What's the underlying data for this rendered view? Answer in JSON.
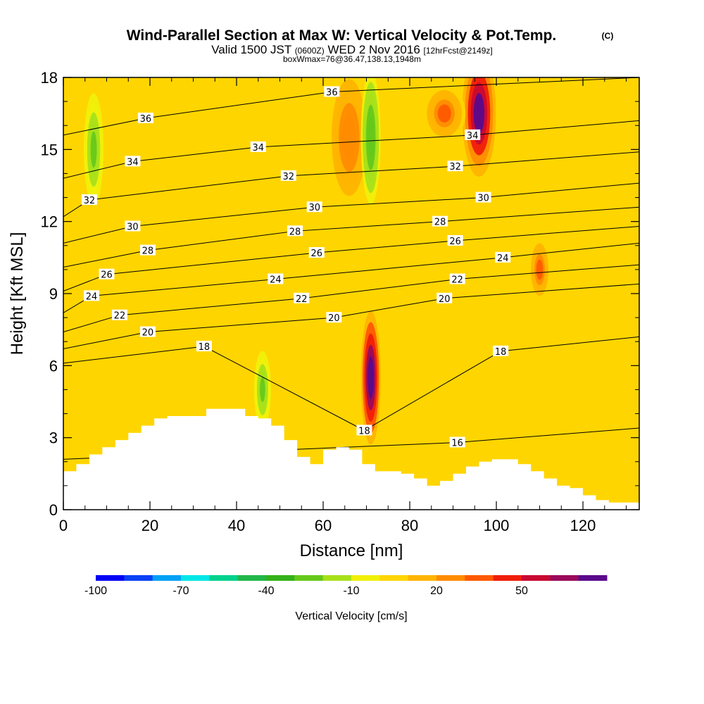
{
  "header": {
    "title": "Wind-Parallel Section at Max W: Vertical Velocity & Pot.Temp.",
    "title_mark": "(C)",
    "subtitle_main": "Valid 1500 JST",
    "subtitle_z": "(0600Z)",
    "subtitle_date": "WED 2 Nov 2016",
    "subtitle_fcst": "[12hrFcst@2149z]",
    "subtitle2": "boxWmax=76@36.47,138.13,1948m"
  },
  "chart_data": {
    "type": "heatmap",
    "xlabel": "Distance [nm]",
    "ylabel": "Height [Kft MSL]",
    "xlim": [
      0,
      133
    ],
    "ylim": [
      0,
      18
    ],
    "x_ticks": [
      0,
      20,
      40,
      60,
      80,
      100,
      120
    ],
    "y_ticks": [
      0,
      3,
      6,
      9,
      12,
      15,
      18
    ],
    "terrain": {
      "x": [
        0,
        3,
        6,
        9,
        12,
        15,
        18,
        21,
        24,
        27,
        30,
        33,
        36,
        39,
        42,
        45,
        48,
        51,
        54,
        57,
        60,
        63,
        66,
        69,
        72,
        75,
        78,
        81,
        84,
        87,
        90,
        93,
        96,
        99,
        102,
        105,
        108,
        111,
        114,
        117,
        120,
        123,
        126,
        129,
        133
      ],
      "height_kft": [
        1.6,
        1.9,
        2.3,
        2.6,
        2.9,
        3.2,
        3.5,
        3.8,
        3.9,
        3.9,
        3.9,
        4.2,
        4.2,
        4.2,
        3.9,
        3.8,
        3.5,
        2.9,
        2.2,
        1.9,
        2.5,
        2.6,
        2.5,
        1.9,
        1.6,
        1.6,
        1.5,
        1.3,
        1.0,
        1.2,
        1.5,
        1.8,
        2.0,
        2.1,
        2.1,
        1.9,
        1.6,
        1.3,
        1.0,
        0.9,
        0.6,
        0.4,
        0.3,
        0.3,
        0.3
      ]
    },
    "vertical_velocity_features": [
      {
        "kind": "updraft",
        "x": 71,
        "y": 5.5,
        "peak_cms": 76
      },
      {
        "kind": "updraft",
        "x": 96,
        "y": 16.5,
        "peak_cms": 70
      },
      {
        "kind": "updraft",
        "x": 88,
        "y": 16.5,
        "peak_cms": 30
      },
      {
        "kind": "updraft",
        "x": 66,
        "y": 15.5,
        "peak_cms": 25
      },
      {
        "kind": "updraft",
        "x": 110,
        "y": 10.0,
        "peak_cms": 30
      },
      {
        "kind": "downdraft",
        "x": 7,
        "y": 15.0,
        "peak_cms": -25
      },
      {
        "kind": "downdraft",
        "x": 71,
        "y": 15.5,
        "peak_cms": -30
      },
      {
        "kind": "downdraft",
        "x": 46,
        "y": 5.0,
        "peak_cms": -25
      }
    ],
    "theta_contours": [
      16,
      18,
      20,
      22,
      24,
      26,
      28,
      30,
      32,
      34,
      36
    ],
    "contour_labels": [
      {
        "text": "36",
        "x": 19,
        "y": 16.3
      },
      {
        "text": "34",
        "x": 16,
        "y": 14.5
      },
      {
        "text": "32",
        "x": 6,
        "y": 12.9
      },
      {
        "text": "30",
        "x": 16,
        "y": 11.8
      },
      {
        "text": "28",
        "x": 19.5,
        "y": 10.8
      },
      {
        "text": "26",
        "x": 10,
        "y": 9.8
      },
      {
        "text": "24",
        "x": 6.5,
        "y": 8.9
      },
      {
        "text": "22",
        "x": 13,
        "y": 8.1
      },
      {
        "text": "20",
        "x": 19.5,
        "y": 7.4
      },
      {
        "text": "18",
        "x": 32.5,
        "y": 6.8
      },
      {
        "text": "36",
        "x": 62,
        "y": 17.4
      },
      {
        "text": "34",
        "x": 45,
        "y": 15.1
      },
      {
        "text": "32",
        "x": 52,
        "y": 13.9
      },
      {
        "text": "30",
        "x": 58,
        "y": 12.6
      },
      {
        "text": "28",
        "x": 53.5,
        "y": 11.6
      },
      {
        "text": "26",
        "x": 58.5,
        "y": 10.7
      },
      {
        "text": "24",
        "x": 49,
        "y": 9.6
      },
      {
        "text": "22",
        "x": 55,
        "y": 8.8
      },
      {
        "text": "20",
        "x": 62.5,
        "y": 8.0
      },
      {
        "text": "18",
        "x": 69.5,
        "y": 3.3
      },
      {
        "text": "34",
        "x": 94.5,
        "y": 15.6
      },
      {
        "text": "32",
        "x": 90.5,
        "y": 14.3
      },
      {
        "text": "30",
        "x": 97,
        "y": 13.0
      },
      {
        "text": "28",
        "x": 87,
        "y": 12.0
      },
      {
        "text": "26",
        "x": 90.5,
        "y": 11.2
      },
      {
        "text": "24",
        "x": 101.5,
        "y": 10.5
      },
      {
        "text": "22",
        "x": 91,
        "y": 9.6
      },
      {
        "text": "20",
        "x": 88,
        "y": 8.8
      },
      {
        "text": "18",
        "x": 101,
        "y": 6.6
      },
      {
        "text": "16",
        "x": 91,
        "y": 2.8
      }
    ]
  },
  "colorbar": {
    "label": "Vertical Velocity [cm/s]",
    "tick_labels": [
      "-100",
      "-70",
      "-40",
      "-10",
      "20",
      "50"
    ],
    "tick_values": [
      -100,
      -70,
      -40,
      -10,
      20,
      50
    ],
    "bins": [
      -100,
      -90,
      -80,
      -70,
      -60,
      -50,
      -40,
      -30,
      -20,
      -10,
      0,
      10,
      20,
      30,
      40,
      50,
      60,
      70
    ],
    "colors": [
      "#0000f5",
      "#0a40f5",
      "#00a0f5",
      "#00e6e6",
      "#00d28c",
      "#22b74a",
      "#33b11a",
      "#66c81a",
      "#a8e01a",
      "#f0f00a",
      "#ffd500",
      "#ffb400",
      "#ff8c00",
      "#ff5a00",
      "#f01e0a",
      "#c80a32",
      "#9b0a5a",
      "#5a0a8c"
    ]
  }
}
